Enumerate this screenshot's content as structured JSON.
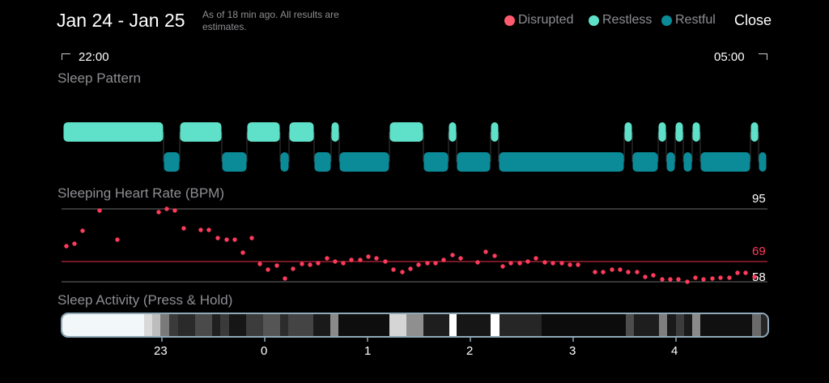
{
  "header": {
    "title": "Jan 24 - Jan 25",
    "subtitle": "As of 18 min ago. All results are estimates.",
    "close_label": "Close"
  },
  "legend": [
    {
      "label": "Disrupted",
      "color": "#ff5a6e"
    },
    {
      "label": "Restless",
      "color": "#5fe0c8"
    },
    {
      "label": "Restful",
      "color": "#0b8a98"
    }
  ],
  "time_range": {
    "start": "22:00",
    "end": "05:00"
  },
  "sleep_pattern": {
    "title": "Sleep Pattern",
    "restless_color": "#5fe0c8",
    "restful_color": "#0b8a98"
  },
  "heart_rate": {
    "title": "Sleeping Heart Rate (BPM)",
    "max_label": "95",
    "avg_label": "69",
    "min_label": "58",
    "accent": "#ff3b5c",
    "unit": "BPM"
  },
  "sleep_activity": {
    "title": "Sleep Activity (Press & Hold)",
    "hour_labels": [
      "23",
      "0",
      "1",
      "2",
      "3",
      "4"
    ]
  }
}
